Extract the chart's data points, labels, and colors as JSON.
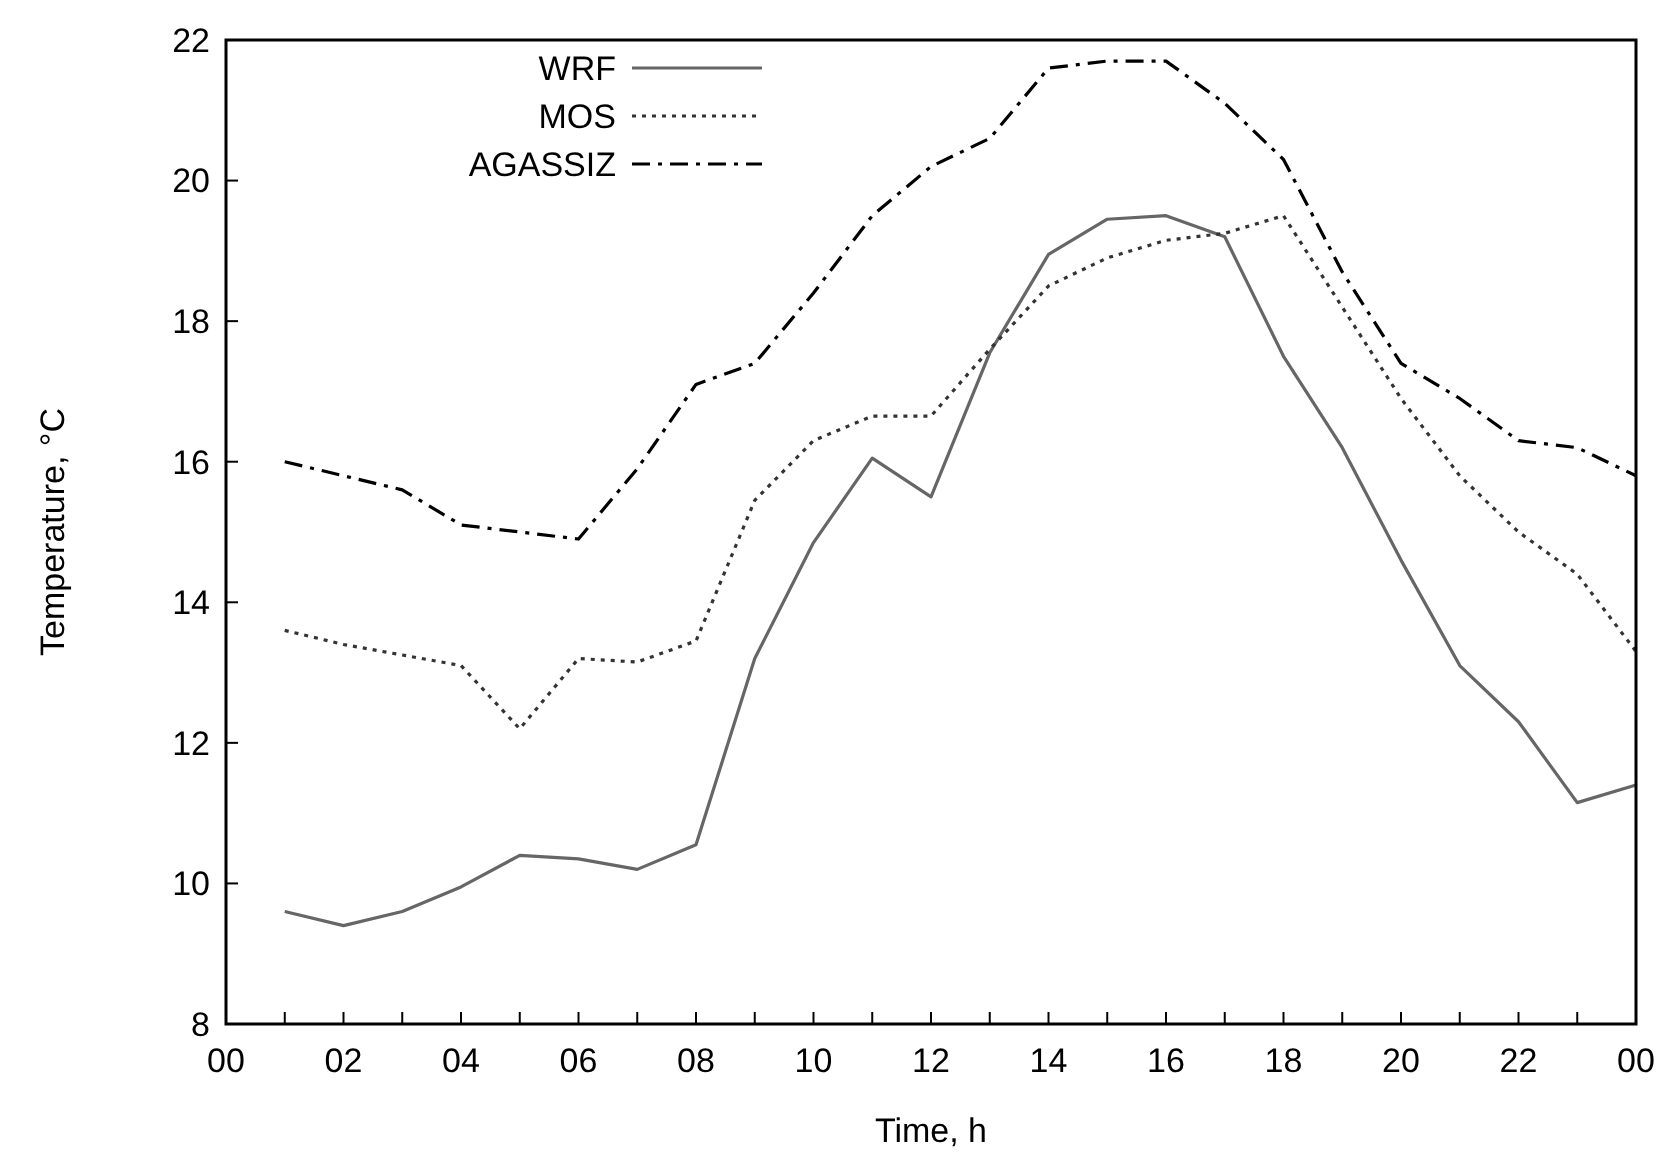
{
  "chart_data": {
    "type": "line",
    "xlabel": "Time, h",
    "ylabel": "Temperature, °C",
    "x": [
      1,
      2,
      3,
      4,
      5,
      6,
      7,
      8,
      9,
      10,
      11,
      12,
      13,
      14,
      15,
      16,
      17,
      18,
      19,
      20,
      21,
      22,
      23,
      24
    ],
    "series": [
      {
        "name": "WRF",
        "color": "#666666",
        "line_style": "solid",
        "values": [
          9.6,
          9.4,
          9.6,
          9.95,
          10.4,
          10.35,
          10.2,
          10.55,
          13.2,
          14.85,
          16.05,
          15.5,
          17.55,
          18.95,
          19.45,
          19.5,
          19.2,
          17.5,
          16.2,
          14.6,
          13.1,
          12.3,
          11.15,
          11.4
        ]
      },
      {
        "name": "MOS",
        "color": "#333333",
        "line_style": "dotted",
        "values": [
          13.6,
          13.4,
          13.25,
          13.1,
          12.2,
          13.2,
          13.15,
          13.45,
          15.45,
          16.3,
          16.65,
          16.65,
          17.6,
          18.5,
          18.9,
          19.15,
          19.25,
          19.5,
          18.2,
          16.9,
          15.8,
          15.0,
          14.4,
          13.3
        ]
      },
      {
        "name": "AGASSIZ",
        "color": "#000000",
        "line_style": "dashed",
        "values": [
          16.0,
          15.8,
          15.6,
          15.1,
          15.0,
          14.9,
          15.9,
          17.1,
          17.4,
          18.4,
          19.5,
          20.2,
          20.6,
          21.6,
          21.7,
          21.7,
          21.1,
          20.3,
          18.7,
          17.4,
          16.9,
          16.3,
          16.2,
          15.8
        ]
      }
    ],
    "xlim": [
      0,
      24
    ],
    "xticks": [
      {
        "value": 0,
        "label": "00"
      },
      {
        "value": 1,
        "label": null
      },
      {
        "value": 2,
        "label": "02"
      },
      {
        "value": 3,
        "label": null
      },
      {
        "value": 4,
        "label": "04"
      },
      {
        "value": 5,
        "label": null
      },
      {
        "value": 6,
        "label": "06"
      },
      {
        "value": 7,
        "label": null
      },
      {
        "value": 8,
        "label": "08"
      },
      {
        "value": 9,
        "label": null
      },
      {
        "value": 10,
        "label": "10"
      },
      {
        "value": 11,
        "label": null
      },
      {
        "value": 12,
        "label": "12"
      },
      {
        "value": 13,
        "label": null
      },
      {
        "value": 14,
        "label": "14"
      },
      {
        "value": 15,
        "label": null
      },
      {
        "value": 16,
        "label": "16"
      },
      {
        "value": 17,
        "label": null
      },
      {
        "value": 18,
        "label": "18"
      },
      {
        "value": 19,
        "label": null
      },
      {
        "value": 20,
        "label": "20"
      },
      {
        "value": 21,
        "label": null
      },
      {
        "value": 22,
        "label": "22"
      },
      {
        "value": 23,
        "label": null
      },
      {
        "value": 24,
        "label": "00"
      }
    ],
    "ylim": [
      8,
      22
    ],
    "yticks": [
      8,
      10,
      12,
      14,
      16,
      18,
      20,
      22
    ],
    "grid": false,
    "legend": "top left",
    "marker": "none"
  }
}
